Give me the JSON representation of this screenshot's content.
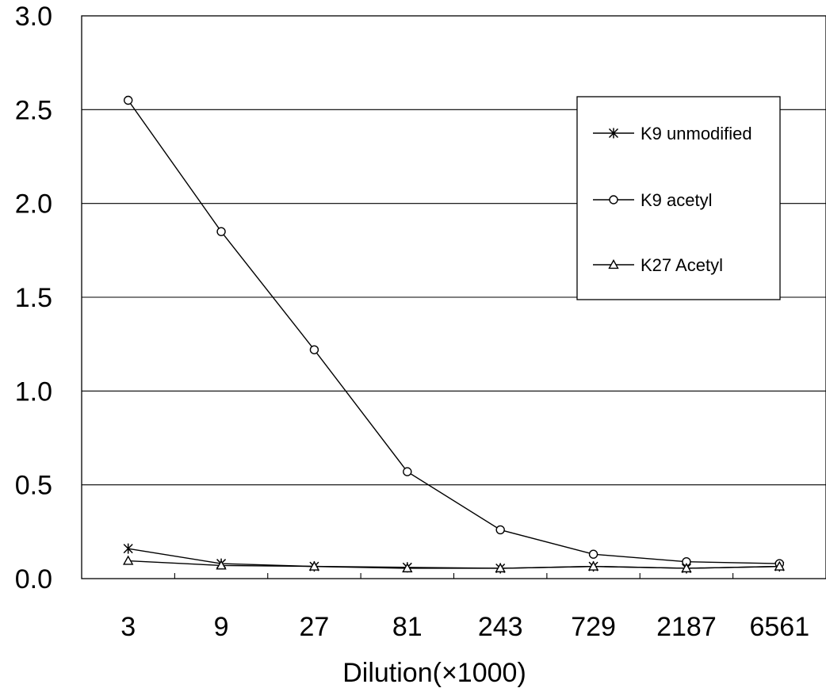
{
  "chart_data": {
    "type": "line",
    "title": "",
    "xlabel": "Dilution(×1000)",
    "ylabel": "",
    "categories": [
      "3",
      "9",
      "27",
      "81",
      "243",
      "729",
      "2187",
      "6561"
    ],
    "ylim": [
      0.0,
      3.0
    ],
    "yticks": [
      "0.0",
      "0.5",
      "1.0",
      "1.5",
      "2.0",
      "2.5",
      "3.0"
    ],
    "ytick_values": [
      0.0,
      0.5,
      1.0,
      1.5,
      2.0,
      2.5,
      3.0
    ],
    "grid": "horizontal",
    "legend_position": "top-right",
    "line_color": "#000000",
    "series": [
      {
        "name": "K9 unmodified",
        "marker": "asterisk",
        "values": [
          0.16,
          0.08,
          0.065,
          0.06,
          0.055,
          0.065,
          0.055,
          0.065
        ]
      },
      {
        "name": "K9 acetyl",
        "marker": "circle",
        "values": [
          2.55,
          1.85,
          1.22,
          0.57,
          0.26,
          0.13,
          0.09,
          0.08
        ]
      },
      {
        "name": "K27 Acetyl",
        "marker": "triangle",
        "values": [
          0.095,
          0.07,
          0.065,
          0.055,
          0.055,
          0.065,
          0.055,
          0.065
        ]
      }
    ]
  }
}
